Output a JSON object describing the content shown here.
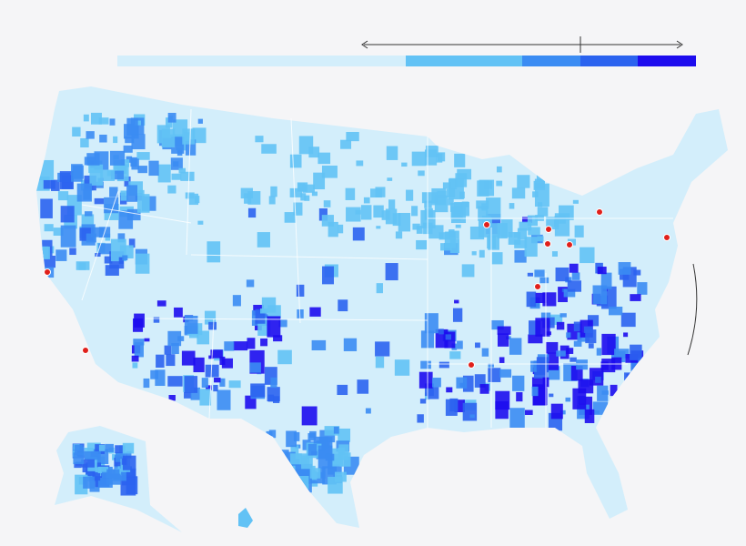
{
  "legend": {
    "colors": [
      "#d3eefb",
      "#62c2f5",
      "#3b8cf3",
      "#2b63ef",
      "#1d0cee"
    ]
  }
}
